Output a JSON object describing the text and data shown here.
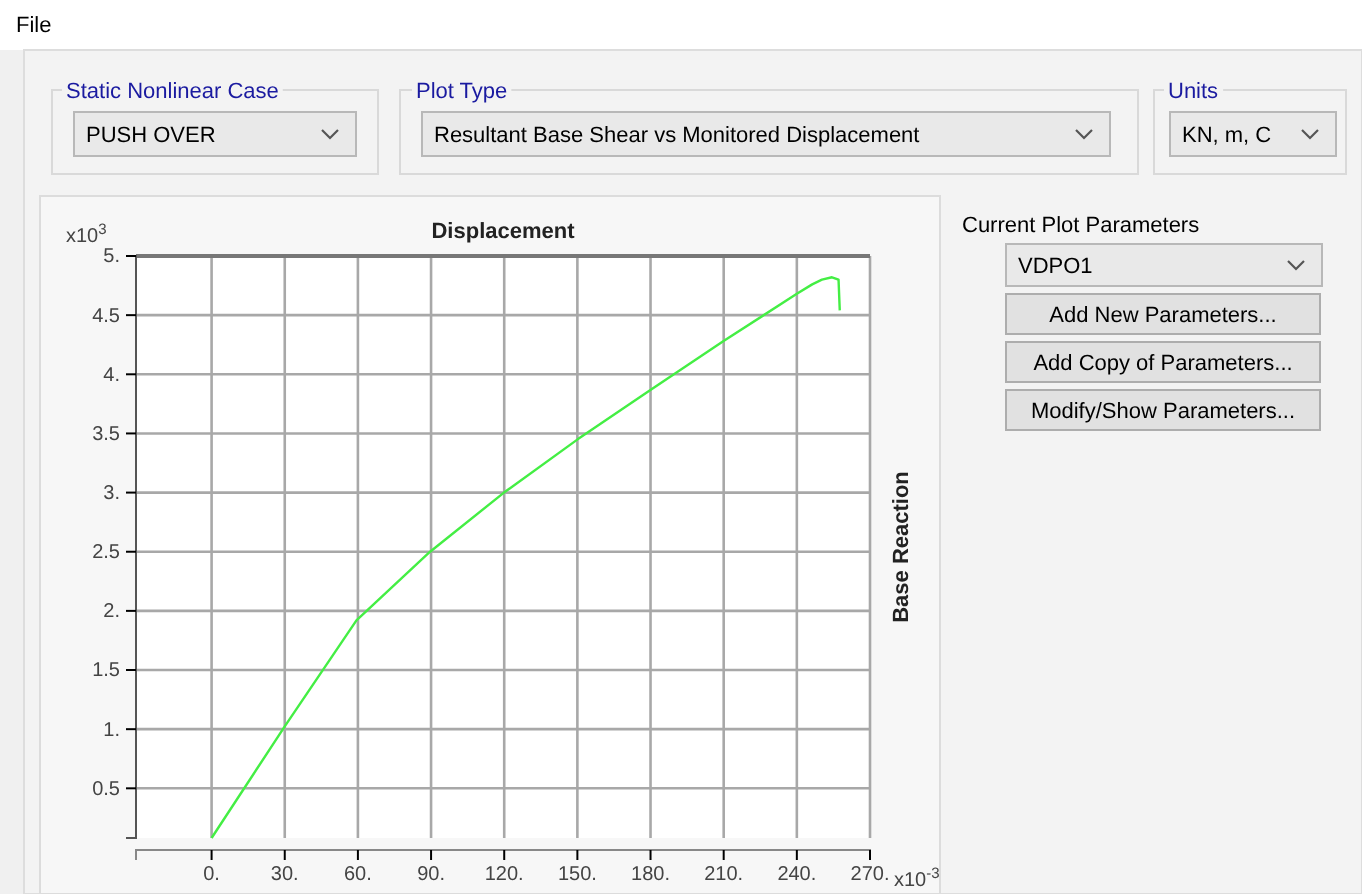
{
  "chart_data": {
    "type": "line",
    "xlabel": "Displacement",
    "ylabel": "Base Reaction",
    "x": [
      0,
      30.2,
      59.4,
      89.6,
      119.9,
      150.1,
      180.1,
      209.8,
      240,
      246.3,
      250.3,
      254.4,
      257.1,
      257.6
    ],
    "series": [
      {
        "color": "#44ee44",
        "values": [
          0.08,
          1.03,
          1.92,
          2.5,
          3.0,
          3.45,
          3.87,
          4.28,
          4.68,
          4.76,
          4.8,
          4.82,
          4.8,
          4.54
        ]
      }
    ],
    "xlim": [
      -31,
      270
    ],
    "ylim": [
      0.08,
      5
    ],
    "xticks": [
      {
        "value": 0,
        "label": "0."
      },
      {
        "value": 30,
        "label": "30."
      },
      {
        "value": 60,
        "label": "60."
      },
      {
        "value": 90,
        "label": "90."
      },
      {
        "value": 120,
        "label": "120."
      },
      {
        "value": 150,
        "label": "150."
      },
      {
        "value": 180,
        "label": "180."
      },
      {
        "value": 210,
        "label": "210."
      },
      {
        "value": 240,
        "label": "240."
      },
      {
        "value": 270,
        "label": "270."
      }
    ],
    "yticks": [
      0.5,
      {
        "value": 1,
        "label": "1."
      },
      1.5,
      {
        "value": 2,
        "label": "2."
      },
      2.5,
      {
        "value": 3,
        "label": "3."
      },
      3.5,
      {
        "value": 4,
        "label": "4."
      },
      4.5,
      {
        "value": 5,
        "label": "5."
      }
    ],
    "grid": true,
    "marker": "none",
    "line_style": "solid",
    "annotations": [
      "x10$^{3}$",
      "x10$^{-3}$",
      "File",
      "Static Nonlinear Case",
      "PUSH OVER",
      "Plot Type",
      "Resultant Base Shear vs Monitored Displacement",
      "Units",
      "KN, m, C",
      "Current Plot Parameters",
      "VDPO1",
      "Add New Parameters...",
      "Add Copy of Parameters...",
      "Modify/Show Parameters..."
    ]
  }
}
